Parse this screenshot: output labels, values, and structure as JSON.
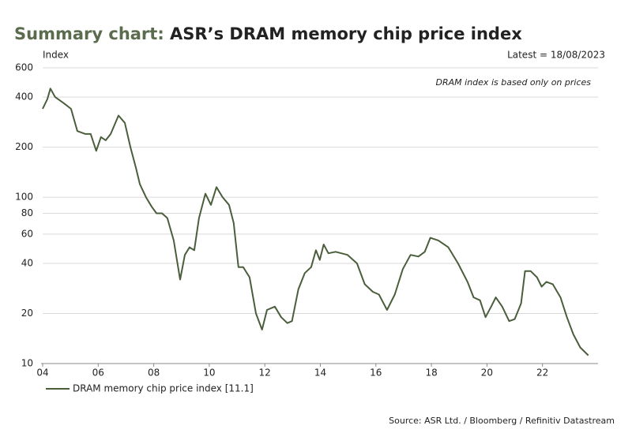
{
  "chart_data": {
    "type": "line",
    "title_lead": "Summary chart:",
    "title": "ASR’s DRAM memory chip price index",
    "y_label": "Index",
    "note": "Latest = 18/08/2023",
    "annotation": "DRAM index is based only on prices",
    "source": "Source: ASR Ltd. / Bloomberg / Refinitiv Datastream",
    "log_y": true,
    "grid": true,
    "title_lead_color": "#5a6b4e",
    "xlim": [
      2004,
      2024
    ],
    "xticks": [
      {
        "value": 2004,
        "label": "04"
      },
      {
        "value": 2006,
        "label": "06"
      },
      {
        "value": 2008,
        "label": "08"
      },
      {
        "value": 2010,
        "label": "10"
      },
      {
        "value": 2012,
        "label": "12"
      },
      {
        "value": 2014,
        "label": "14"
      },
      {
        "value": 2016,
        "label": "16"
      },
      {
        "value": 2018,
        "label": "18"
      },
      {
        "value": 2020,
        "label": "20"
      },
      {
        "value": 2022,
        "label": "22"
      }
    ],
    "ylim": [
      10,
      600
    ],
    "yticks": [
      10,
      20,
      40,
      60,
      80,
      100,
      200,
      400,
      600
    ],
    "x": [
      2004.0,
      2004.17,
      2004.28,
      2004.45,
      2004.74,
      2005.02,
      2005.25,
      2005.54,
      2005.73,
      2005.93,
      2006.1,
      2006.27,
      2006.45,
      2006.73,
      2006.96,
      2007.16,
      2007.36,
      2007.5,
      2007.72,
      2007.92,
      2008.1,
      2008.3,
      2008.49,
      2008.72,
      2008.95,
      2009.12,
      2009.29,
      2009.46,
      2009.63,
      2009.86,
      2010.06,
      2010.26,
      2010.48,
      2010.71,
      2010.88,
      2011.05,
      2011.22,
      2011.45,
      2011.68,
      2011.9,
      2012.08,
      2012.36,
      2012.59,
      2012.81,
      2012.98,
      2013.21,
      2013.44,
      2013.67,
      2013.84,
      2013.98,
      2014.12,
      2014.29,
      2014.55,
      2014.98,
      2015.32,
      2015.6,
      2015.89,
      2016.11,
      2016.4,
      2016.68,
      2016.97,
      2017.25,
      2017.53,
      2017.76,
      2017.96,
      2018.25,
      2018.61,
      2018.96,
      2019.3,
      2019.52,
      2019.75,
      2019.95,
      2020.15,
      2020.32,
      2020.55,
      2020.8,
      2021.0,
      2021.23,
      2021.37,
      2021.57,
      2021.8,
      2021.97,
      2022.14,
      2022.37,
      2022.65,
      2022.88,
      2023.11,
      2023.36,
      2023.65
    ],
    "series": [
      {
        "name": "DRAM memory chip price index [11.1]",
        "color": "#4b5e3c",
        "values": [
          340,
          390,
          450,
          400,
          370,
          340,
          250,
          240,
          240,
          190,
          230,
          220,
          240,
          310,
          280,
          200,
          150,
          120,
          100,
          88,
          80,
          80,
          75,
          55,
          32,
          45,
          50,
          48,
          75,
          105,
          90,
          115,
          100,
          90,
          70,
          38,
          38,
          33,
          20,
          16,
          21,
          22,
          19,
          17.5,
          18,
          28,
          35,
          38,
          48,
          42,
          52,
          46,
          47,
          45,
          40,
          30,
          27,
          26,
          21,
          26,
          37,
          45,
          44,
          47,
          57,
          55,
          50,
          40,
          31,
          25,
          24,
          19,
          22,
          25,
          22,
          18,
          18.5,
          23,
          36,
          36,
          33,
          29,
          31,
          30,
          25,
          19,
          15,
          12.5,
          11.2
        ]
      }
    ]
  }
}
